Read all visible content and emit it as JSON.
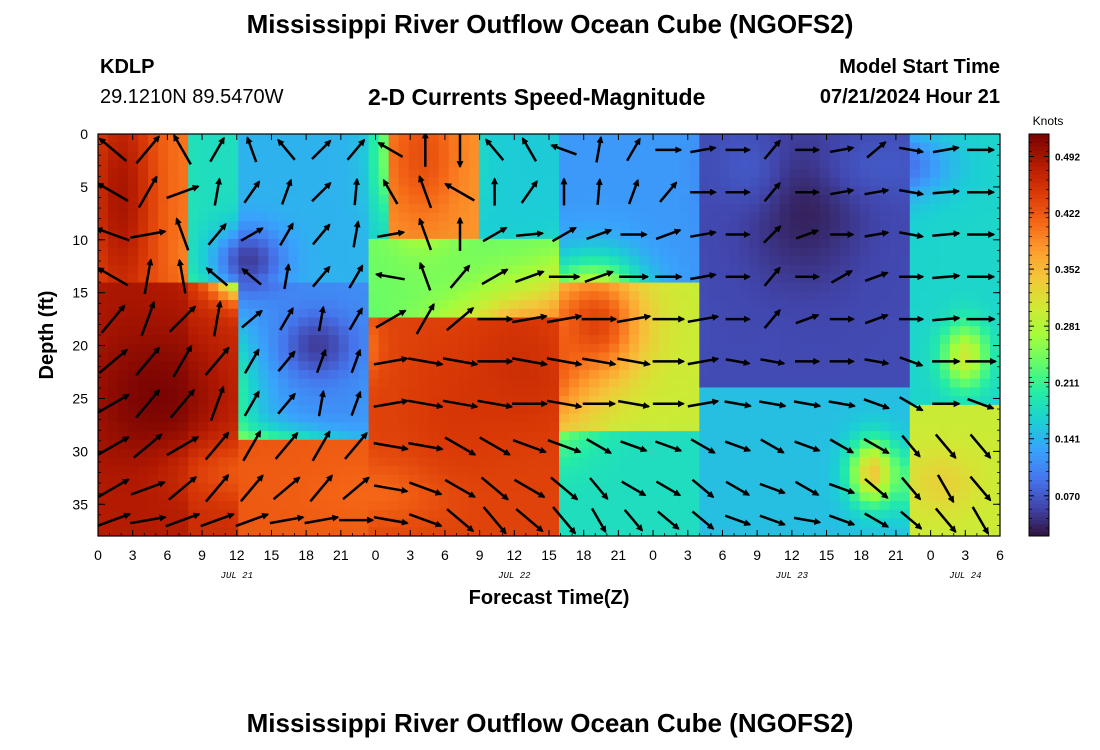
{
  "header": {
    "main_title": "Mississippi River Outflow Ocean Cube (NGOFS2)",
    "station_id": "KDLP",
    "station_coords": "29.1210N  89.5470W",
    "plot_title": "2-D Currents Speed-Magnitude",
    "model_start_label": "Model Start Time",
    "model_start_value": "07/21/2024 Hour 21"
  },
  "footer": {
    "bottom_title": "Mississippi River Outflow Ocean Cube (NGOFS2)"
  },
  "colors": {
    "arrow": "#000000",
    "colormap": [
      "#30123b",
      "#4145ab",
      "#4675ed",
      "#39a2fc",
      "#1bcfd4",
      "#24eca6",
      "#61fc6c",
      "#a4fc3b",
      "#d1e834",
      "#f3c63a",
      "#fe9b2d",
      "#f36315",
      "#d93806",
      "#b11901",
      "#7a0402"
    ]
  },
  "chart_data": {
    "type": "heatmap",
    "xlabel": "Forecast Time(Z)",
    "ylabel": "Depth (ft)",
    "xlim": [
      0,
      78
    ],
    "ylim": [
      38,
      0
    ],
    "y_ticks": [
      0,
      5,
      10,
      15,
      20,
      25,
      30,
      35
    ],
    "x_tick_labels": [
      "0",
      "3",
      "6",
      "9",
      "12",
      "15",
      "18",
      "21",
      "0",
      "3",
      "6",
      "9",
      "12",
      "15",
      "18",
      "21",
      "0",
      "3",
      "6",
      "9",
      "12",
      "15",
      "18",
      "21",
      "0",
      "3",
      "6"
    ],
    "date_labels": [
      {
        "hour": 12,
        "label": "JUL 21"
      },
      {
        "hour": 36,
        "label": "JUL 22"
      },
      {
        "hour": 60,
        "label": "JUL 23"
      },
      {
        "hour": 75,
        "label": "JUL 24"
      }
    ],
    "colorbar": {
      "title": "Knots",
      "ticks": [
        0.07,
        0.141,
        0.211,
        0.281,
        0.352,
        0.422,
        0.492
      ],
      "tick_labels": [
        "0.070",
        "0.141",
        "0.211",
        "0.281",
        "0.352",
        "0.422",
        "0.492"
      ],
      "range": [
        0.02,
        0.52
      ]
    },
    "speed_features": [
      {
        "t": 2,
        "d": 6,
        "w": 3,
        "h": 12,
        "v": 0.49
      },
      {
        "t": 5,
        "d": 25,
        "w": 6,
        "h": 7,
        "v": 0.52
      },
      {
        "t": 14,
        "d": 32,
        "w": 7,
        "h": 3,
        "v": 0.42
      },
      {
        "t": 24,
        "d": 34,
        "w": 6,
        "h": 3,
        "v": 0.41
      },
      {
        "t": 31,
        "d": 26,
        "w": 4,
        "h": 6,
        "v": 0.45
      },
      {
        "t": 37,
        "d": 22,
        "w": 5,
        "h": 6,
        "v": 0.46
      },
      {
        "t": 43,
        "d": 18,
        "w": 4,
        "h": 5,
        "v": 0.44
      },
      {
        "t": 28,
        "d": 2,
        "w": 3,
        "h": 6,
        "v": 0.43
      },
      {
        "t": 13,
        "d": 12,
        "w": 3,
        "h": 3,
        "v": 0.05
      },
      {
        "t": 19,
        "d": 20,
        "w": 3,
        "h": 3,
        "v": 0.05
      },
      {
        "t": 61,
        "d": 7,
        "w": 5,
        "h": 7,
        "v": 0.03
      },
      {
        "t": 56,
        "d": 3,
        "w": 3,
        "h": 4,
        "v": 0.07
      },
      {
        "t": 68,
        "d": 3,
        "w": 5,
        "h": 3,
        "v": 0.07
      },
      {
        "t": 58,
        "d": 20,
        "w": 2,
        "h": 2,
        "v": 0.06
      },
      {
        "t": 67,
        "d": 32,
        "w": 2,
        "h": 3,
        "v": 0.34
      },
      {
        "t": 73,
        "d": 33,
        "w": 3,
        "h": 3,
        "v": 0.33
      },
      {
        "t": 75,
        "d": 21,
        "w": 2,
        "h": 3,
        "v": 0.3
      }
    ],
    "vector_hours": [
      0,
      3,
      6,
      9,
      12,
      15,
      18,
      21,
      24,
      27,
      30,
      33,
      36,
      39,
      42,
      45,
      48,
      51,
      54,
      57,
      60,
      63,
      66,
      69,
      72,
      75
    ],
    "vector_depths": [
      1.5,
      5.5,
      9.5,
      13.5,
      17.5,
      21.5,
      25.5,
      29.5,
      33.5,
      36.5
    ],
    "vector_directions_deg": [
      [
        -50,
        40,
        -30,
        30,
        -20,
        -40,
        45,
        40,
        -60,
        0,
        180,
        -40,
        -30,
        -70,
        10,
        30,
        90,
        80,
        90,
        40,
        90,
        80,
        50,
        100,
        80,
        90
      ],
      [
        -60,
        30,
        70,
        10,
        35,
        20,
        45,
        5,
        -30,
        -20,
        -60,
        0,
        35,
        0,
        5,
        20,
        40,
        90,
        90,
        40,
        90,
        80,
        80,
        100,
        85,
        90
      ],
      [
        -70,
        80,
        -20,
        40,
        60,
        30,
        40,
        10,
        80,
        -20,
        0,
        60,
        85,
        60,
        70,
        90,
        70,
        80,
        90,
        45,
        70,
        90,
        80,
        100,
        85,
        90
      ],
      [
        -60,
        10,
        -10,
        -50,
        -50,
        10,
        40,
        30,
        -80,
        -20,
        40,
        60,
        70,
        90,
        70,
        90,
        90,
        80,
        90,
        40,
        90,
        60,
        70,
        90,
        85,
        90
      ],
      [
        40,
        20,
        45,
        10,
        50,
        30,
        10,
        30,
        60,
        30,
        50,
        90,
        80,
        80,
        90,
        80,
        90,
        80,
        90,
        40,
        70,
        90,
        70,
        90,
        85,
        90
      ],
      [
        50,
        40,
        30,
        40,
        30,
        40,
        20,
        20,
        80,
        100,
        100,
        90,
        100,
        100,
        100,
        100,
        90,
        80,
        100,
        100,
        90,
        90,
        100,
        110,
        90,
        90
      ],
      [
        60,
        40,
        40,
        20,
        30,
        40,
        10,
        20,
        80,
        100,
        100,
        100,
        90,
        100,
        90,
        100,
        90,
        80,
        100,
        100,
        100,
        100,
        110,
        120,
        90,
        110
      ],
      [
        60,
        50,
        60,
        40,
        30,
        40,
        30,
        40,
        100,
        100,
        120,
        120,
        110,
        110,
        120,
        110,
        110,
        120,
        110,
        120,
        110,
        120,
        120,
        140,
        140,
        140
      ],
      [
        60,
        70,
        50,
        40,
        40,
        50,
        40,
        50,
        100,
        110,
        120,
        130,
        120,
        130,
        140,
        120,
        120,
        130,
        120,
        110,
        120,
        110,
        130,
        140,
        150,
        140
      ],
      [
        70,
        80,
        70,
        70,
        70,
        80,
        80,
        90,
        100,
        110,
        130,
        140,
        130,
        140,
        150,
        140,
        130,
        130,
        110,
        110,
        100,
        110,
        120,
        130,
        140,
        150
      ]
    ]
  }
}
